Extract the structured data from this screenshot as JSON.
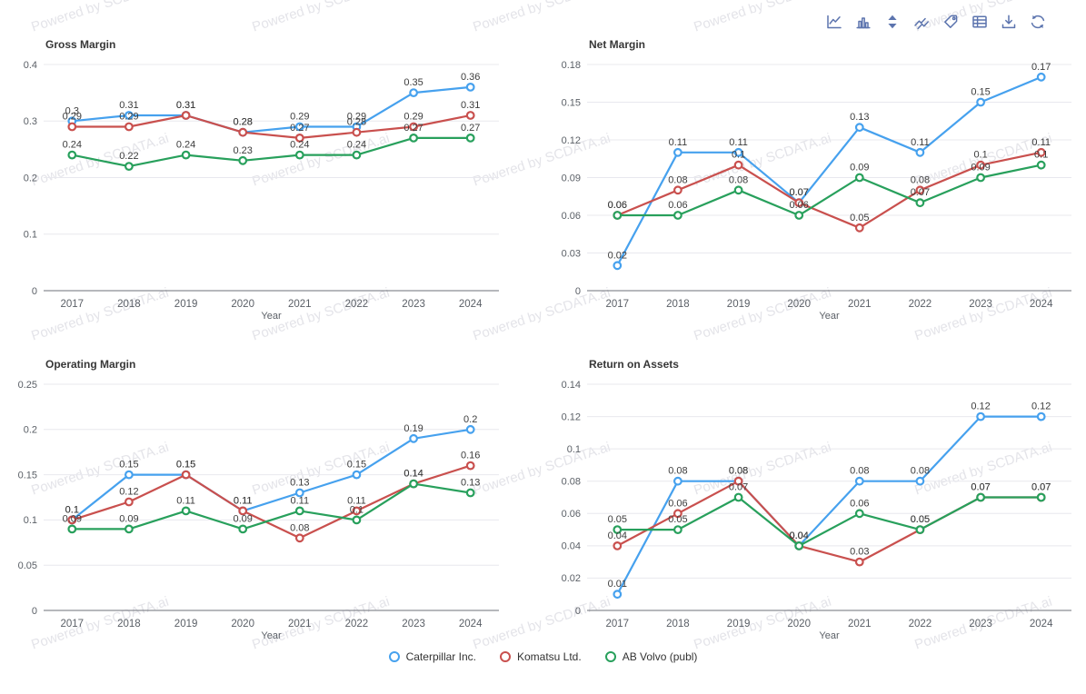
{
  "watermark": {
    "text": "Powered by SCDATA.ai"
  },
  "toolbar": {
    "icons": [
      "line-chart-icon",
      "bar-chart-icon",
      "sort-updown-icon",
      "trend-lines-icon",
      "tag-icon",
      "table-icon",
      "download-icon",
      "refresh-icon"
    ],
    "icon_color": "#5c74ae"
  },
  "legend": [
    {
      "label": "Caterpillar Inc.",
      "color": "#46a1ee"
    },
    {
      "label": "Komatsu Ltd.",
      "color": "#c9504e"
    },
    {
      "label": "AB Volvo (publ)",
      "color": "#28a05c"
    }
  ],
  "colors": {
    "caterpillar": "#46a1ee",
    "komatsu": "#c9504e",
    "volvo": "#28a05c",
    "gridline": "#e8e8ee",
    "axis_line": "#6e7079",
    "tick_label": "#5a5f66",
    "title": "#373737",
    "data_label": "#3c3c3c"
  },
  "chart_data": [
    {
      "type": "line",
      "title": "Gross Margin",
      "xlabel": "Year",
      "categories": [
        "2017",
        "2018",
        "2019",
        "2020",
        "2021",
        "2022",
        "2023",
        "2024"
      ],
      "yticks": [
        0,
        0.1,
        0.2,
        0.3,
        0.4
      ],
      "ylim": [
        0,
        0.4
      ],
      "grid": true,
      "legend_position": "bottom",
      "series": [
        {
          "name": "Caterpillar Inc.",
          "color": "#46a1ee",
          "values": [
            0.3,
            0.31,
            0.31,
            0.28,
            0.29,
            0.29,
            0.35,
            0.36
          ]
        },
        {
          "name": "Komatsu Ltd.",
          "color": "#c9504e",
          "values": [
            0.29,
            0.29,
            0.31,
            0.28,
            0.27,
            0.28,
            0.29,
            0.31
          ]
        },
        {
          "name": "AB Volvo (publ)",
          "color": "#28a05c",
          "values": [
            0.24,
            0.22,
            0.24,
            0.23,
            0.24,
            0.24,
            0.27,
            0.27
          ]
        }
      ]
    },
    {
      "type": "line",
      "title": "Net Margin",
      "xlabel": "Year",
      "categories": [
        "2017",
        "2018",
        "2019",
        "2020",
        "2021",
        "2022",
        "2023",
        "2024"
      ],
      "yticks": [
        0,
        0.03,
        0.06,
        0.09,
        0.12,
        0.15,
        0.18
      ],
      "ylim": [
        0,
        0.18
      ],
      "grid": true,
      "legend_position": "bottom",
      "series": [
        {
          "name": "Caterpillar Inc.",
          "color": "#46a1ee",
          "values": [
            0.02,
            0.11,
            0.11,
            0.07,
            0.13,
            0.11,
            0.15,
            0.17
          ]
        },
        {
          "name": "Komatsu Ltd.",
          "color": "#c9504e",
          "values": [
            0.06,
            0.08,
            0.1,
            0.07,
            0.05,
            0.08,
            0.1,
            0.11
          ]
        },
        {
          "name": "AB Volvo (publ)",
          "color": "#28a05c",
          "values": [
            0.06,
            0.06,
            0.08,
            0.06,
            0.09,
            0.07,
            0.09,
            0.1
          ]
        }
      ]
    },
    {
      "type": "line",
      "title": "Operating Margin",
      "xlabel": "Year",
      "categories": [
        "2017",
        "2018",
        "2019",
        "2020",
        "2021",
        "2022",
        "2023",
        "2024"
      ],
      "yticks": [
        0,
        0.05,
        0.1,
        0.15,
        0.2,
        0.25
      ],
      "ylim": [
        0,
        0.25
      ],
      "grid": true,
      "legend_position": "bottom",
      "series": [
        {
          "name": "Caterpillar Inc.",
          "color": "#46a1ee",
          "values": [
            0.1,
            0.15,
            0.15,
            0.11,
            0.13,
            0.15,
            0.19,
            0.2
          ]
        },
        {
          "name": "Komatsu Ltd.",
          "color": "#c9504e",
          "values": [
            0.1,
            0.12,
            0.15,
            0.11,
            0.08,
            0.11,
            0.14,
            0.16
          ]
        },
        {
          "name": "AB Volvo (publ)",
          "color": "#28a05c",
          "values": [
            0.09,
            0.09,
            0.11,
            0.09,
            0.11,
            0.1,
            0.14,
            0.13
          ]
        }
      ]
    },
    {
      "type": "line",
      "title": "Return on Assets",
      "xlabel": "Year",
      "categories": [
        "2017",
        "2018",
        "2019",
        "2020",
        "2021",
        "2022",
        "2023",
        "2024"
      ],
      "yticks": [
        0,
        0.02,
        0.04,
        0.06,
        0.08,
        0.1,
        0.12,
        0.14
      ],
      "ylim": [
        0,
        0.14
      ],
      "grid": true,
      "legend_position": "bottom",
      "series": [
        {
          "name": "Caterpillar Inc.",
          "color": "#46a1ee",
          "values": [
            0.01,
            0.08,
            0.08,
            0.04,
            0.08,
            0.08,
            0.12,
            0.12
          ]
        },
        {
          "name": "Komatsu Ltd.",
          "color": "#c9504e",
          "values": [
            0.04,
            0.06,
            0.08,
            0.04,
            0.03,
            0.05,
            0.07,
            0.07
          ]
        },
        {
          "name": "AB Volvo (publ)",
          "color": "#28a05c",
          "values": [
            0.05,
            0.05,
            0.07,
            0.04,
            0.06,
            0.05,
            0.07,
            0.07
          ]
        }
      ]
    }
  ]
}
